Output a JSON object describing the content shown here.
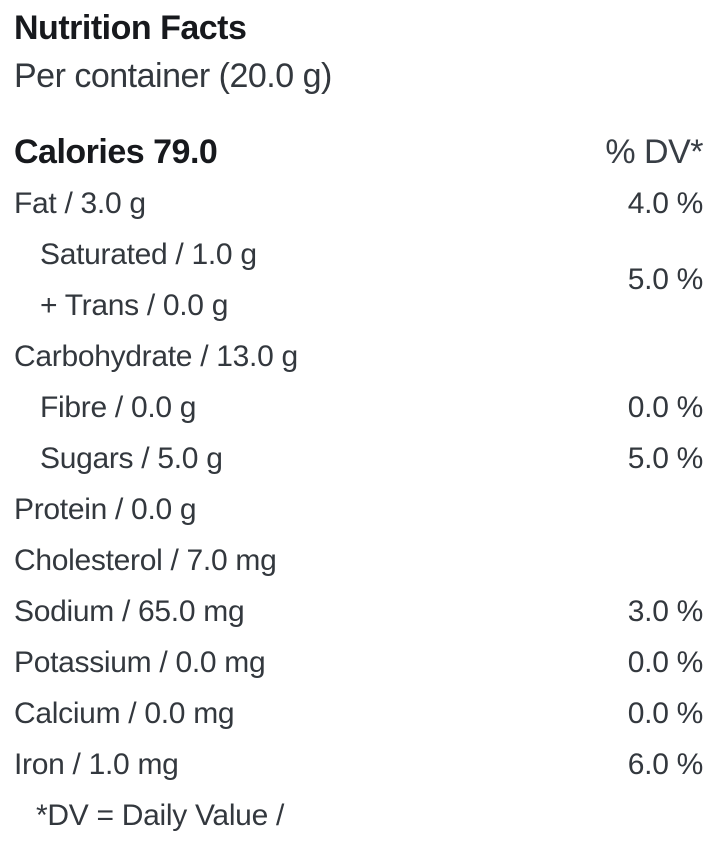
{
  "colors": {
    "background": "#ffffff",
    "body_text": "#33383e",
    "heading_text": "#17191d"
  },
  "nutrition": {
    "title": "Nutrition Facts",
    "serving": "Per container (20.0 g)",
    "calories": {
      "label": "Calories 79.0",
      "dv_header": "% DV*"
    },
    "rows": [
      {
        "name": "fat",
        "label": "Fat / 3.0 g",
        "dv": "4.0 %"
      },
      {
        "name": "carbohydrate",
        "label": "Carbohydrate / 13.0 g",
        "dv": ""
      },
      {
        "name": "fibre",
        "label": "Fibre / 0.0 g",
        "dv": "0.0 %"
      },
      {
        "name": "sugars",
        "label": "Sugars / 5.0 g",
        "dv": "5.0 %"
      },
      {
        "name": "protein",
        "label": "Protein / 0.0 g",
        "dv": ""
      },
      {
        "name": "cholesterol",
        "label": "Cholesterol / 7.0 mg",
        "dv": ""
      },
      {
        "name": "sodium",
        "label": "Sodium / 65.0 mg",
        "dv": "3.0 %"
      },
      {
        "name": "potassium",
        "label": "Potassium / 0.0 mg",
        "dv": "0.0 %"
      },
      {
        "name": "calcium",
        "label": "Calcium / 0.0 mg",
        "dv": "0.0 %"
      },
      {
        "name": "iron",
        "label": "Iron / 1.0 mg",
        "dv": "6.0 %"
      }
    ],
    "sat_trans_group": {
      "line1": "Saturated / 1.0 g",
      "line2": "+ Trans / 0.0 g",
      "dv": "5.0 %"
    },
    "footnote": "*DV = Daily Value /"
  }
}
